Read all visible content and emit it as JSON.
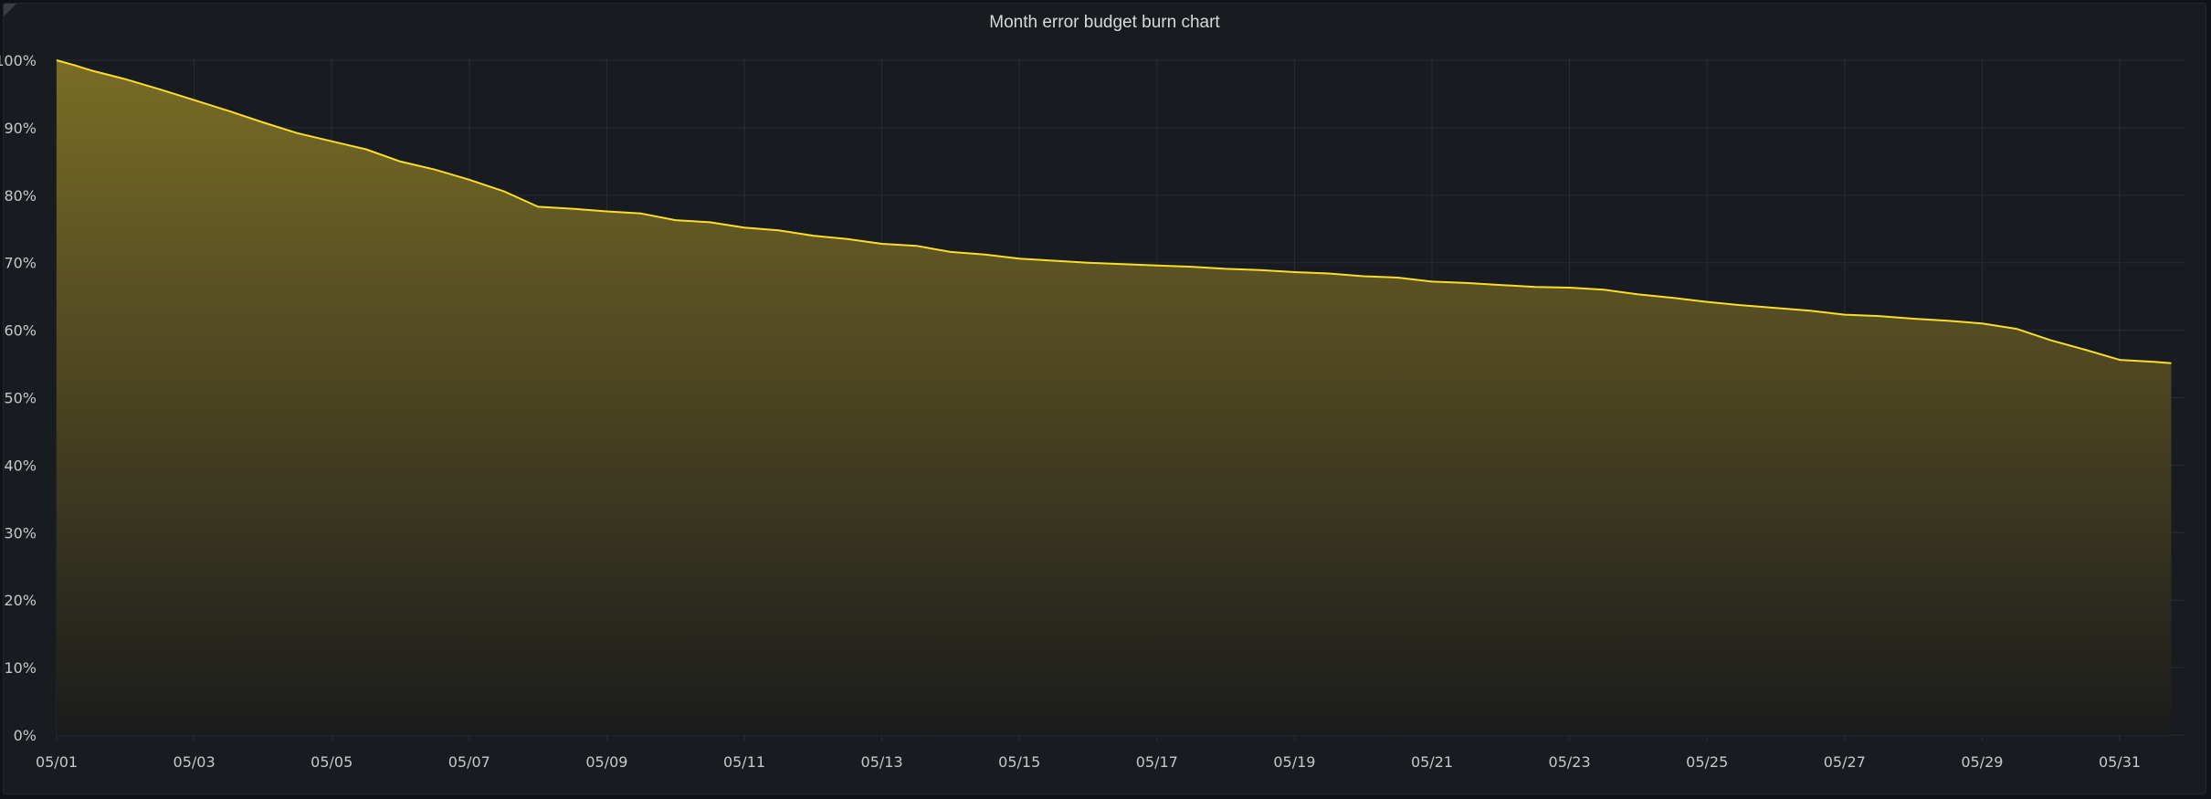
{
  "panel": {
    "title": "Month error budget burn chart"
  },
  "chart_data": {
    "type": "area",
    "title": "Month error budget burn chart",
    "xlabel": "",
    "ylabel": "",
    "x_tick_labels": [
      "05/01",
      "05/03",
      "05/05",
      "05/07",
      "05/09",
      "05/11",
      "05/13",
      "05/15",
      "05/17",
      "05/19",
      "05/21",
      "05/23",
      "05/25",
      "05/27",
      "05/29",
      "05/31"
    ],
    "y_tick_labels": [
      "0%",
      "10%",
      "20%",
      "30%",
      "40%",
      "50%",
      "60%",
      "70%",
      "80%",
      "90%",
      "100%"
    ],
    "xlim": [
      "05/01 00:00",
      "05/31 18:00"
    ],
    "ylim": [
      0,
      100
    ],
    "grid": true,
    "legend": "none",
    "series_color": "#fade2a",
    "fill_gradient": [
      "#7a6c26",
      "#1a1b1c"
    ],
    "series": [
      {
        "x": [
          "05/01 00:00",
          "05/01 06:00",
          "05/01 12:00",
          "05/02 00:00",
          "05/02 12:00",
          "05/03 00:00",
          "05/03 12:00",
          "05/04 00:00",
          "05/04 12:00",
          "05/05 00:00",
          "05/05 12:00",
          "05/06 00:00",
          "05/06 12:00",
          "05/07 00:00",
          "05/07 12:00",
          "05/08 00:00",
          "05/08 12:00",
          "05/09 00:00",
          "05/09 12:00",
          "05/10 00:00",
          "05/10 12:00",
          "05/11 00:00",
          "05/11 12:00",
          "05/12 00:00",
          "05/12 12:00",
          "05/13 00:00",
          "05/13 12:00",
          "05/14 00:00",
          "05/14 12:00",
          "05/15 00:00",
          "05/15 12:00",
          "05/16 00:00",
          "05/16 12:00",
          "05/17 00:00",
          "05/17 12:00",
          "05/18 00:00",
          "05/18 12:00",
          "05/19 00:00",
          "05/19 12:00",
          "05/20 00:00",
          "05/20 12:00",
          "05/21 00:00",
          "05/21 12:00",
          "05/22 00:00",
          "05/22 12:00",
          "05/23 00:00",
          "05/23 12:00",
          "05/24 00:00",
          "05/24 12:00",
          "05/25 00:00",
          "05/25 12:00",
          "05/26 00:00",
          "05/26 12:00",
          "05/27 00:00",
          "05/27 12:00",
          "05/28 00:00",
          "05/28 12:00",
          "05/29 00:00",
          "05/29 12:00",
          "05/30 00:00",
          "05/30 12:00",
          "05/31 00:00",
          "05/31 12:00",
          "05/31 18:00"
        ],
        "values": [
          100,
          99.3,
          98.5,
          97.2,
          95.7,
          94.1,
          92.5,
          90.8,
          89.2,
          88.0,
          86.8,
          85.0,
          83.8,
          82.3,
          80.6,
          78.3,
          78.0,
          77.6,
          77.3,
          76.3,
          76.0,
          75.2,
          74.8,
          74.0,
          73.5,
          72.8,
          72.5,
          71.6,
          71.2,
          70.6,
          70.3,
          70.0,
          69.8,
          69.6,
          69.4,
          69.1,
          68.9,
          68.6,
          68.4,
          68.0,
          67.8,
          67.2,
          67.0,
          66.7,
          66.4,
          66.3,
          66.0,
          65.3,
          64.8,
          64.2,
          63.7,
          63.3,
          62.9,
          62.3,
          62.1,
          61.7,
          61.4,
          61.0,
          60.2,
          58.5,
          57.1,
          55.6,
          55.3,
          55.1
        ]
      }
    ]
  }
}
